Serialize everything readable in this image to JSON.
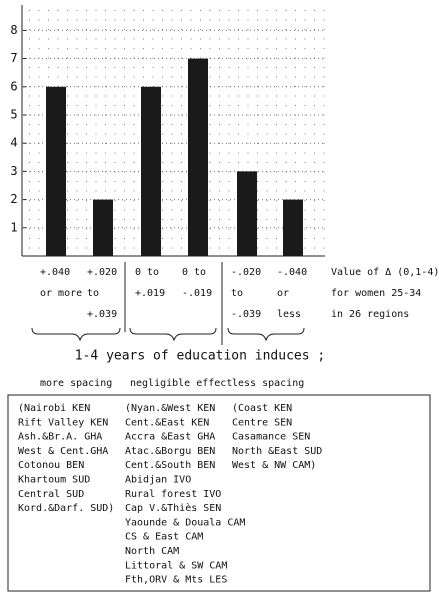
{
  "chart_data": {
    "type": "bar",
    "categories": [
      [
        "+.040",
        "or more"
      ],
      [
        "+.020",
        "to",
        "+.039"
      ],
      [
        "0 to",
        "+.019"
      ],
      [
        "0 to",
        "-.019"
      ],
      [
        "-.020",
        "to",
        "-.039"
      ],
      [
        "-.040",
        "or",
        "less"
      ]
    ],
    "values": [
      6,
      2,
      6,
      7,
      3,
      2
    ],
    "color": "#1a1a1a",
    "ylim": [
      0,
      8.9
    ],
    "yticks": [
      1,
      2,
      3,
      4,
      5,
      6,
      7,
      8
    ],
    "grid": true,
    "value_axis_label": [
      "Value of Δ (0,1-4)",
      "for women 25-34",
      "in 26 regions"
    ],
    "caption": "1-4 years of education induces ;",
    "groups": [
      {
        "name": "more spacing",
        "regions": [
          "(Nairobi KEN",
          "Rift Valley KEN",
          "Ash.&Br.A. GHA",
          "West & Cent.GHA",
          "Cotonou BEN",
          "Khartoum SUD",
          "Central SUD",
          "Kord.&Darf. SUD)"
        ]
      },
      {
        "name": "negligible effect",
        "regions": [
          "(Nyan.&West KEN",
          "Cent.&East KEN",
          "Accra &East GHA",
          "Atac.&Borgu BEN",
          "Cent.&South BEN",
          "Abidjan IVO",
          "Rural forest IVO",
          "Cap V.&Thiès SEN",
          "Yaounde & Douala CAM",
          "CS & East CAM",
          "North CAM",
          "Littoral & SW CAM",
          "Fth,ORV & Mts LES"
        ]
      },
      {
        "name": "less spacing",
        "regions": [
          "(Coast KEN",
          "Centre SEN",
          "Casamance SEN",
          "North &East SUD",
          "West & NW CAM)"
        ]
      }
    ]
  }
}
